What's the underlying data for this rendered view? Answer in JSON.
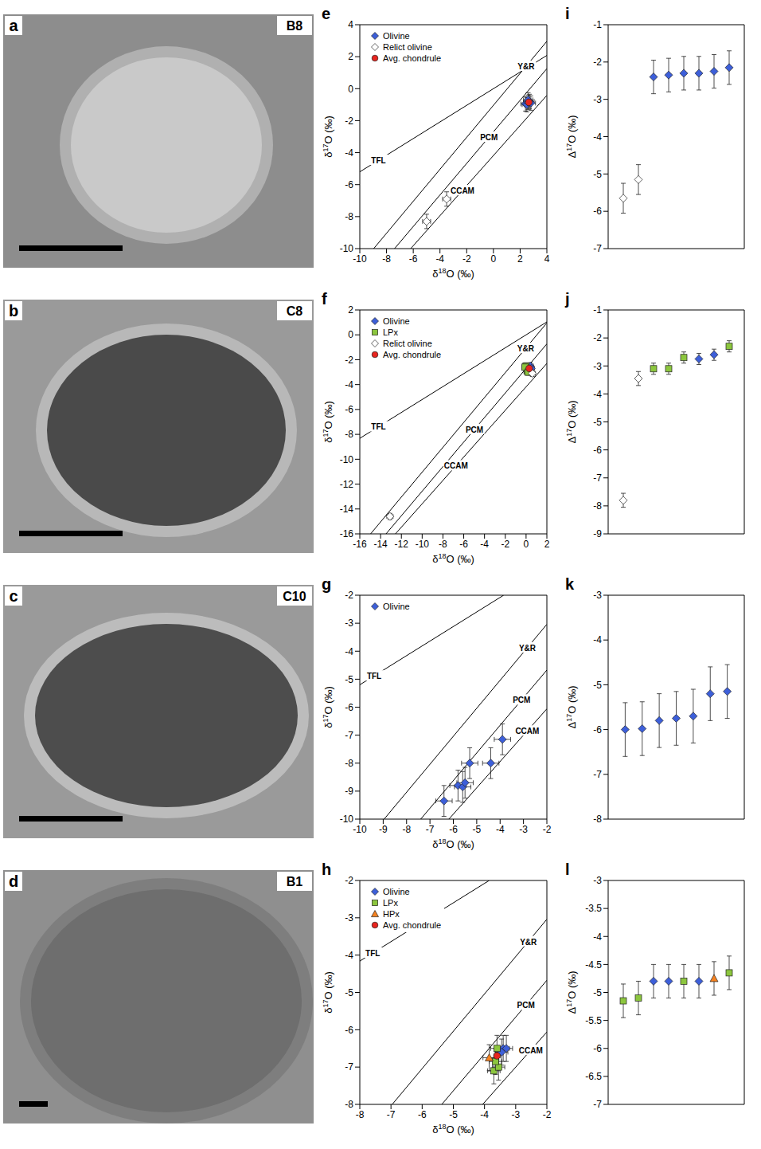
{
  "images": [
    {
      "letter": "a",
      "sample": "B8"
    },
    {
      "letter": "b",
      "sample": "C8"
    },
    {
      "letter": "c",
      "sample": "C10"
    },
    {
      "letter": "d",
      "sample": "B1"
    }
  ],
  "chart_data": [
    {
      "type": "scatter",
      "panel": "e",
      "xlabel": "δ18O (‰)",
      "ylabel": "δ17O (‰)",
      "xlim": [
        -10,
        4
      ],
      "ylim": [
        -10,
        4
      ],
      "xticks": [
        -10,
        -8,
        -6,
        -4,
        -2,
        0,
        2,
        4
      ],
      "yticks": [
        -10,
        -8,
        -6,
        -4,
        -2,
        0,
        2,
        4
      ],
      "legend": "upper left",
      "series": [
        {
          "name": "Olivine",
          "color": "#3d5fd9",
          "marker": "diamond",
          "x": [
            2.4,
            2.5,
            2.6,
            2.7,
            2.6,
            2.8
          ],
          "y": [
            -0.95,
            -1.0,
            -0.85,
            -0.8,
            -0.7,
            -0.9
          ],
          "x_error": [
            0.35,
            0.35,
            0.35,
            0.35,
            0.35,
            0.35
          ],
          "y_error": [
            0.45,
            0.45,
            0.45,
            0.45,
            0.45,
            0.45
          ]
        },
        {
          "name": "Relict olivine",
          "color": "#ffffff",
          "marker": "diamond",
          "x": [
            -5.0,
            -3.5
          ],
          "y": [
            -8.3,
            -6.9
          ],
          "x_error": [
            0.3,
            0.3
          ],
          "y_error": [
            0.45,
            0.45
          ]
        },
        {
          "name": "Avg. chondrule",
          "color": "#e8251f",
          "marker": "circle",
          "x": [
            2.65
          ],
          "y": [
            -0.85
          ],
          "x_error": [
            0.15
          ],
          "y_error": [
            0.2
          ]
        }
      ],
      "ref_lines": [
        {
          "name": "TFL",
          "x": [
            -10,
            4
          ],
          "y": [
            -5.2,
            2.08
          ]
        },
        {
          "name": "Y&R",
          "x": [
            -8.96,
            4
          ],
          "y": [
            -10,
            2.96
          ]
        },
        {
          "name": "PCM",
          "x": [
            -7.4,
            4
          ],
          "y": [
            -10,
            1.25
          ]
        },
        {
          "name": "CCAM",
          "x": [
            -6.19,
            4
          ],
          "y": [
            -10,
            -0.42
          ]
        }
      ]
    },
    {
      "type": "scatter",
      "panel": "i",
      "ylabel": "Δ17O (‰)",
      "xlim": [
        0,
        9
      ],
      "ylim": [
        -7,
        -1
      ],
      "yticks": [
        -7,
        -6,
        -5,
        -4,
        -3,
        -2,
        -1
      ],
      "tick_labels": "y",
      "series": [
        {
          "name": "Relict olivine",
          "color": "#ffffff",
          "marker": "diamond",
          "x": [
            1,
            2
          ],
          "values": [
            -5.65,
            -5.15
          ],
          "errors": [
            0.4,
            0.4
          ]
        },
        {
          "name": "Olivine",
          "color": "#3d5fd9",
          "marker": "diamond",
          "x": [
            3,
            4,
            5,
            6,
            7,
            8
          ],
          "values": [
            -2.4,
            -2.35,
            -2.3,
            -2.3,
            -2.25,
            -2.15
          ],
          "errors": [
            0.45,
            0.45,
            0.45,
            0.45,
            0.45,
            0.45
          ]
        }
      ]
    },
    {
      "type": "scatter",
      "panel": "f",
      "xlabel": "δ18O (‰)",
      "ylabel": "δ17O (‰)",
      "xlim": [
        -16,
        2
      ],
      "ylim": [
        -16,
        2
      ],
      "xticks": [
        -16,
        -14,
        -12,
        -10,
        -8,
        -6,
        -4,
        -2,
        0,
        2
      ],
      "yticks": [
        -16,
        -14,
        -12,
        -10,
        -8,
        -6,
        -4,
        -2,
        0,
        2
      ],
      "legend": "upper left",
      "series": [
        {
          "name": "Olivine",
          "color": "#3d5fd9",
          "marker": "diamond",
          "x": [
            0.3,
            0.4,
            0.5,
            0.2
          ],
          "y": [
            -2.6,
            -2.5,
            -2.7,
            -2.8
          ],
          "x_error": [
            0.3,
            0.3,
            0.3,
            0.3
          ],
          "y_error": [
            0.25,
            0.25,
            0.25,
            0.25
          ]
        },
        {
          "name": "LPx",
          "color": "#8cc63e",
          "marker": "square",
          "x": [
            0.0,
            0.1,
            -0.1,
            0.2
          ],
          "y": [
            -2.5,
            -2.9,
            -2.6,
            -3.0
          ],
          "x_error": [
            0.3,
            0.3,
            0.3,
            0.3
          ],
          "y_error": [
            0.25,
            0.25,
            0.25,
            0.25
          ]
        },
        {
          "name": "Relict olivine",
          "color": "#ffffff",
          "marker": "diamond",
          "x": [
            -13.1,
            0.6
          ],
          "y": [
            -14.6,
            -3.1
          ],
          "x_error": [
            0.3,
            0.3
          ],
          "y_error": [
            0.25,
            0.25
          ]
        },
        {
          "name": "Avg. chondrule",
          "color": "#e8251f",
          "marker": "circle",
          "x": [
            0.3
          ],
          "y": [
            -2.7
          ],
          "x_error": [
            0.1
          ],
          "y_error": [
            0.1
          ]
        }
      ],
      "ref_lines": [
        {
          "name": "TFL",
          "x": [
            -16,
            2
          ],
          "y": [
            -8.32,
            1.04
          ]
        },
        {
          "name": "Y&R",
          "x": [
            -14.96,
            2
          ],
          "y": [
            -16,
            0.96
          ]
        },
        {
          "name": "PCM",
          "x": [
            -13.475,
            2
          ],
          "y": [
            -16,
            -0.726
          ]
        },
        {
          "name": "CCAM",
          "x": [
            -12.57,
            2
          ],
          "y": [
            -16,
            -2.3
          ]
        }
      ]
    },
    {
      "type": "scatter",
      "panel": "j",
      "ylabel": "Δ17O (‰)",
      "xlim": [
        0,
        9
      ],
      "ylim": [
        -9,
        -1
      ],
      "yticks": [
        -9,
        -8,
        -7,
        -6,
        -5,
        -4,
        -3,
        -2,
        -1
      ],
      "tick_labels": "y",
      "series": [
        {
          "name": "Relict olivine",
          "color": "#ffffff",
          "marker": "diamond",
          "x": [
            1,
            2
          ],
          "values": [
            -7.8,
            -3.45
          ],
          "errors": [
            0.25,
            0.25
          ]
        },
        {
          "name": "LPx",
          "color": "#8cc63e",
          "marker": "square",
          "x": [
            3,
            4,
            5,
            8
          ],
          "values": [
            -3.1,
            -3.1,
            -2.7,
            -2.3
          ],
          "errors": [
            0.2,
            0.2,
            0.2,
            0.2
          ]
        },
        {
          "name": "Olivine",
          "color": "#3d5fd9",
          "marker": "diamond",
          "x": [
            6,
            7
          ],
          "values": [
            -2.75,
            -2.6
          ],
          "errors": [
            0.2,
            0.2
          ]
        }
      ]
    },
    {
      "type": "scatter",
      "panel": "g",
      "xlabel": "δ18O (‰)",
      "ylabel": "δ17O (‰)",
      "xlim": [
        -10,
        -2
      ],
      "ylim": [
        -10,
        -2
      ],
      "xticks": [
        -10,
        -9,
        -8,
        -7,
        -6,
        -5,
        -4,
        -3,
        -2
      ],
      "yticks": [
        -10,
        -9,
        -8,
        -7,
        -6,
        -5,
        -4,
        -3,
        -2
      ],
      "legend": "upper left",
      "series": [
        {
          "name": "Olivine",
          "color": "#3d5fd9",
          "marker": "diamond",
          "x": [
            -6.4,
            -5.8,
            -5.6,
            -5.5,
            -5.3,
            -4.4,
            -3.9
          ],
          "y": [
            -9.35,
            -8.8,
            -8.85,
            -8.7,
            -8.0,
            -8.0,
            -7.15
          ],
          "x_error": [
            0.35,
            0.35,
            0.35,
            0.35,
            0.35,
            0.35,
            0.35
          ],
          "y_error": [
            0.55,
            0.55,
            0.55,
            0.55,
            0.55,
            0.55,
            0.55
          ]
        }
      ],
      "ref_lines": [
        {
          "name": "TFL",
          "x": [
            -10,
            -3.85
          ],
          "y": [
            -5.2,
            -2
          ]
        },
        {
          "name": "Y&R",
          "x": [
            -8.96,
            -2
          ],
          "y": [
            -10,
            -3.04
          ]
        },
        {
          "name": "PCM",
          "x": [
            -7.396,
            -2
          ],
          "y": [
            -10,
            -4.674
          ]
        },
        {
          "name": "CCAM",
          "x": [
            -6.19,
            -2
          ],
          "y": [
            -10,
            -6.06
          ]
        }
      ]
    },
    {
      "type": "scatter",
      "panel": "k",
      "ylabel": "Δ17O (‰)",
      "xlim": [
        0,
        8
      ],
      "ylim": [
        -8,
        -3
      ],
      "yticks": [
        -8,
        -7,
        -6,
        -5,
        -4,
        -3
      ],
      "tick_labels": "y",
      "series": [
        {
          "name": "Olivine",
          "color": "#3d5fd9",
          "marker": "diamond",
          "x": [
            1,
            2,
            3,
            4,
            5,
            6,
            7
          ],
          "values": [
            -6.0,
            -5.98,
            -5.8,
            -5.75,
            -5.7,
            -5.2,
            -5.15
          ],
          "errors": [
            0.6,
            0.6,
            0.6,
            0.6,
            0.6,
            0.6,
            0.6
          ]
        }
      ]
    },
    {
      "type": "scatter",
      "panel": "h",
      "xlabel": "δ18O (‰)",
      "ylabel": "δ17O (‰)",
      "xlim": [
        -8,
        -2
      ],
      "ylim": [
        -8,
        -2
      ],
      "xticks": [
        -8,
        -7,
        -6,
        -5,
        -4,
        -3,
        -2
      ],
      "yticks": [
        -8,
        -7,
        -6,
        -5,
        -4,
        -3,
        -2
      ],
      "legend": "upper left",
      "series": [
        {
          "name": "Olivine",
          "color": "#3d5fd9",
          "marker": "diamond",
          "x": [
            -3.4,
            -3.3,
            -3.45
          ],
          "y": [
            -6.5,
            -6.5,
            -6.6
          ],
          "x_error": [
            0.2,
            0.2,
            0.2
          ],
          "y_error": [
            0.35,
            0.35,
            0.35
          ]
        },
        {
          "name": "LPx",
          "color": "#8cc63e",
          "marker": "square",
          "x": [
            -3.6,
            -3.7,
            -3.55,
            -3.65
          ],
          "y": [
            -6.5,
            -7.1,
            -7.0,
            -6.85
          ],
          "x_error": [
            0.2,
            0.2,
            0.2,
            0.2
          ],
          "y_error": [
            0.35,
            0.35,
            0.35,
            0.35
          ]
        },
        {
          "name": "HPx",
          "color": "#f58220",
          "marker": "triangle",
          "x": [
            -3.85
          ],
          "y": [
            -6.75
          ],
          "x_error": [
            0.2
          ],
          "y_error": [
            0.35
          ]
        },
        {
          "name": "Avg. chondrule",
          "color": "#e8251f",
          "marker": "circle",
          "x": [
            -3.6
          ],
          "y": [
            -6.7
          ],
          "x_error": [
            0.1
          ],
          "y_error": [
            0.1
          ]
        }
      ],
      "ref_lines": [
        {
          "name": "TFL",
          "x": [
            -8,
            -3.85
          ],
          "y": [
            -4.16,
            -2
          ]
        },
        {
          "name": "Y&R",
          "x": [
            -6.96,
            -2
          ],
          "y": [
            -8,
            -3.04
          ]
        },
        {
          "name": "PCM",
          "x": [
            -5.37,
            -2
          ],
          "y": [
            -8,
            -4.674
          ]
        },
        {
          "name": "CCAM",
          "x": [
            -4.06,
            -2
          ],
          "y": [
            -8,
            -6.06
          ]
        }
      ]
    },
    {
      "type": "scatter",
      "panel": "l",
      "ylabel": "Δ17O (‰)",
      "xlim": [
        0,
        9
      ],
      "ylim": [
        -7,
        -3
      ],
      "yticks": [
        -7,
        -6.5,
        -6,
        -5.5,
        -5,
        -4.5,
        -4,
        -3.5,
        -3
      ],
      "tick_labels": "y",
      "series": [
        {
          "name": "LPx",
          "color": "#8cc63e",
          "marker": "square",
          "x": [
            1,
            2,
            5,
            8
          ],
          "values": [
            -5.15,
            -5.1,
            -4.8,
            -4.65
          ],
          "errors": [
            0.3,
            0.3,
            0.3,
            0.3
          ]
        },
        {
          "name": "Olivine",
          "color": "#3d5fd9",
          "marker": "diamond",
          "x": [
            3,
            4,
            6
          ],
          "values": [
            -4.8,
            -4.8,
            -4.8
          ],
          "errors": [
            0.3,
            0.3,
            0.3
          ]
        },
        {
          "name": "HPx",
          "color": "#f58220",
          "marker": "triangle",
          "x": [
            7
          ],
          "values": [
            -4.75
          ],
          "errors": [
            0.3
          ]
        }
      ]
    }
  ]
}
